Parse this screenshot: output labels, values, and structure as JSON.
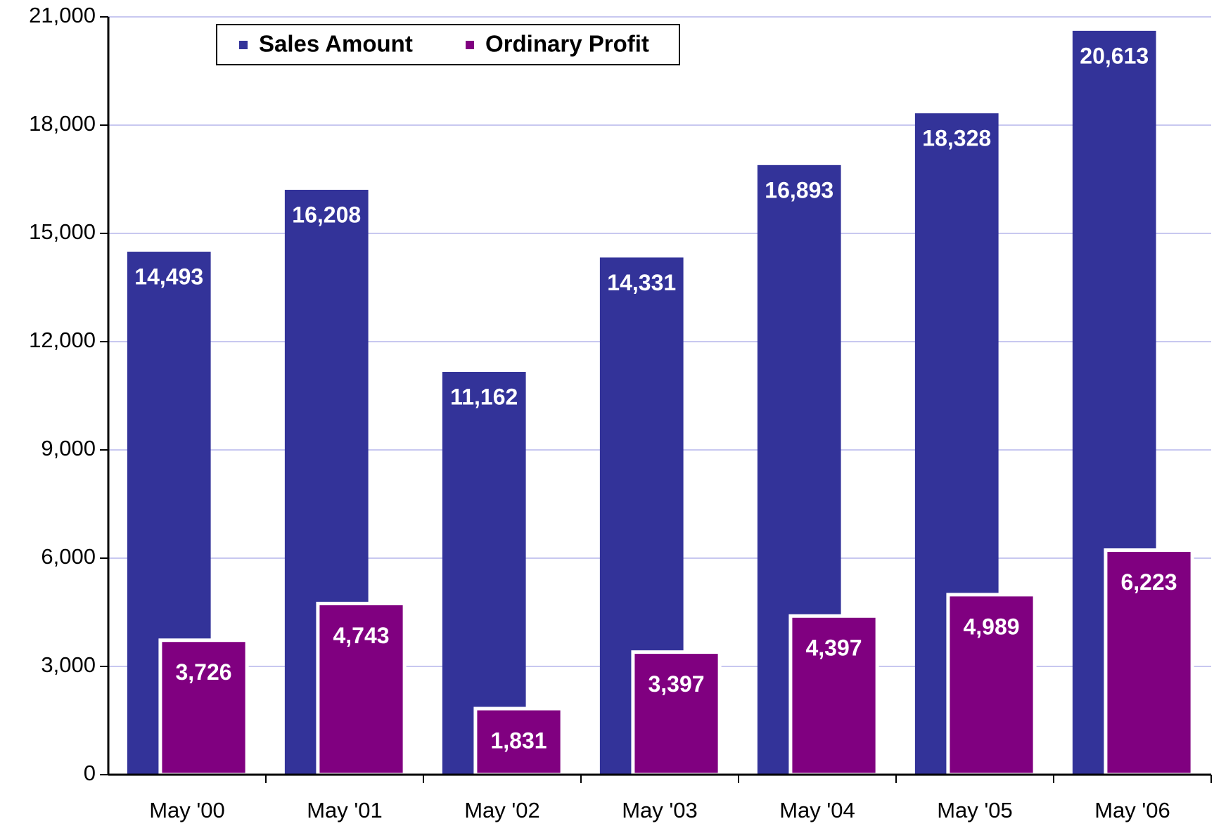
{
  "chart_data": {
    "type": "bar",
    "categories": [
      "May '00",
      "May '01",
      "May '02",
      "May '03",
      "May '04",
      "May '05",
      "May '06"
    ],
    "series": [
      {
        "name": "Sales Amount",
        "color": "#333399",
        "values": [
          14493,
          16208,
          11162,
          14331,
          16893,
          18328,
          20613
        ],
        "value_labels": [
          "14,493",
          "16,208",
          "11,162",
          "14,331",
          "16,893",
          "18,328",
          "20,613"
        ]
      },
      {
        "name": "Ordinary Profit",
        "color": "#800080",
        "values": [
          3726,
          4743,
          1831,
          3397,
          4397,
          4989,
          6223
        ],
        "value_labels": [
          "3,726",
          "4,743",
          "1,831",
          "3,397",
          "4,397",
          "4,989",
          "6,223"
        ]
      }
    ],
    "ylim": [
      0,
      21000
    ],
    "yticks": [
      0,
      {
        "value": 3000,
        "label": "3,000"
      },
      {
        "value": 6000,
        "label": "6,000"
      },
      {
        "value": 9000,
        "label": "9,000"
      },
      {
        "value": 12000,
        "label": "12,000"
      },
      {
        "value": 15000,
        "label": "15,000"
      },
      {
        "value": 18000,
        "label": "18,000"
      },
      {
        "value": 21000,
        "label": "21,000"
      }
    ],
    "grid": true
  }
}
